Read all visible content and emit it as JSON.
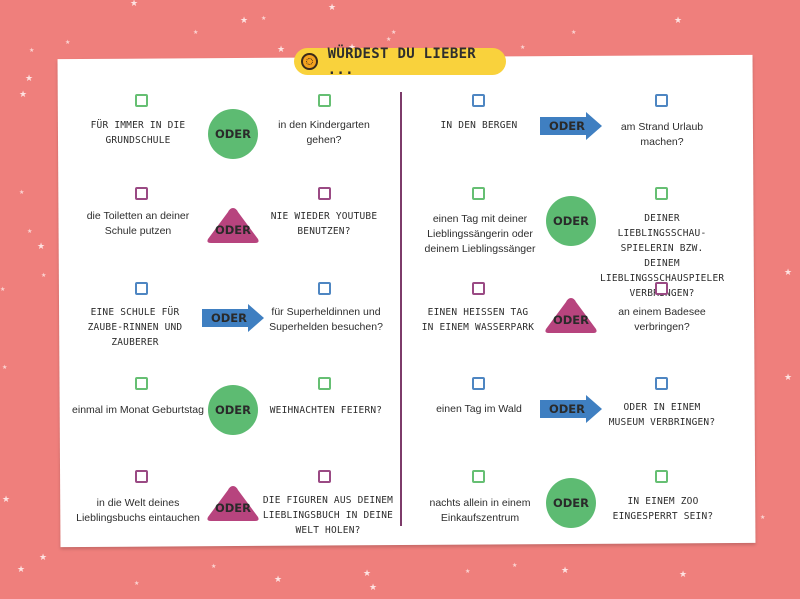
{
  "title": "WÜRDEST DU LIEBER ...",
  "colors": {
    "background": "#ef7f7c",
    "card": "#ffffff",
    "title_pill": "#f9d23c",
    "oder_green": "#5dbb72",
    "oder_purple": "#b7447e",
    "oder_blue": "#3f7fc1",
    "divider": "#7d3b6a"
  },
  "badge_label": "ODER",
  "left": [
    {
      "a": "FÜR IMMER IN DIE GRUNDSCHULE",
      "b": "in den Kindergarten gehen?",
      "badge": "circle-green",
      "checkbox_color": "green"
    },
    {
      "a": "die Toiletten an deiner Schule putzen",
      "b": "NIE WIEDER YOUTUBE BENUTZEN?",
      "badge": "triangle-purple",
      "checkbox_color": "purple"
    },
    {
      "a": "EINE SCHULE FÜR ZAUBE-RINNEN UND ZAUBERER",
      "b": "für Superheldinnen und Superhelden besuchen?",
      "badge": "arrow-blue",
      "checkbox_color": "blue"
    },
    {
      "a": "einmal im Monat Geburtstag",
      "b": "WEIHNACHTEN FEIERN?",
      "badge": "circle-green",
      "checkbox_color": "green"
    },
    {
      "a": "in die Welt deines Lieblingsbuchs eintauchen",
      "b": "DIE FIGUREN AUS DEINEM LIEBLINGSBUCH IN DEINE WELT HOLEN?",
      "badge": "triangle-purple",
      "checkbox_color": "purple"
    }
  ],
  "right": [
    {
      "a": "IN DEN BERGEN",
      "b": "am Strand Urlaub machen?",
      "badge": "arrow-blue",
      "checkbox_color": "blue"
    },
    {
      "a": "einen Tag mit deiner Lieblingssängerin oder deinem Lieblingssänger",
      "b": "DEINER LIEBLINGSSCHAU-SPIELERIN BZW. DEINEM LIEBLINGSSCHAUSPIELER VERBRINGEN?",
      "badge": "circle-green",
      "checkbox_color": "green"
    },
    {
      "a": "EINEN HEISSEN TAG IN EINEM WASSERPARK",
      "b": "an einem Badesee verbringen?",
      "badge": "triangle-purple",
      "checkbox_color": "purple"
    },
    {
      "a": "einen Tag im Wald",
      "b": "ODER IN EINEM MUSEUM VERBRINGEN?",
      "badge": "arrow-blue",
      "checkbox_color": "blue"
    },
    {
      "a": "nachts allein in einem Einkaufszentrum",
      "b": "IN EINEM ZOO EINGESPERRT SEIN?",
      "badge": "circle-green",
      "checkbox_color": "green"
    }
  ]
}
